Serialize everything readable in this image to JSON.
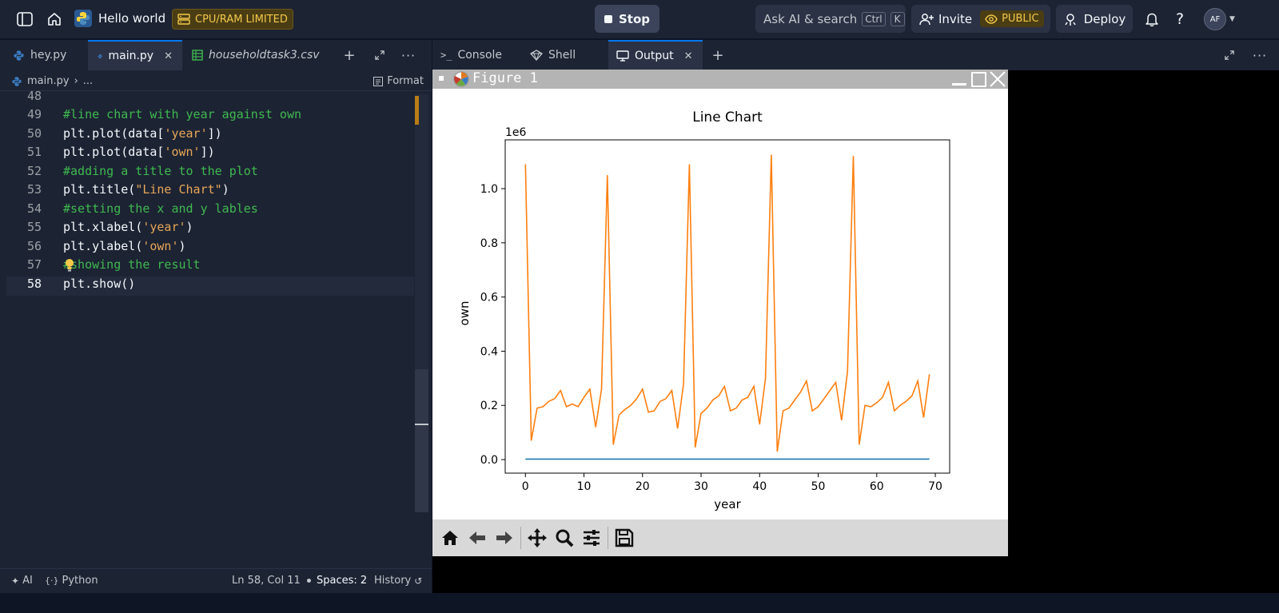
{
  "topbar": {
    "app_title": "Hello world",
    "limit_badge": "CPU/RAM LIMITED",
    "stop_label": "Stop",
    "search_label": "Ask AI & search",
    "shortcut_ctrl": "Ctrl",
    "shortcut_k": "K",
    "invite_label": "Invite",
    "visibility_label": "PUBLIC",
    "deploy_label": "Deploy",
    "avatar_initials": "AF"
  },
  "editor": {
    "tabs": [
      {
        "label": "hey.py"
      },
      {
        "label": "main.py"
      },
      {
        "label": "householdtask3.csv"
      }
    ],
    "breadcrumb_file": "main.py",
    "breadcrumb_more": "...",
    "format_label": "Format",
    "lines": [
      {
        "n": "48",
        "parts": []
      },
      {
        "n": "49",
        "parts": [
          {
            "t": "#line chart with year against own",
            "c": "cm"
          }
        ]
      },
      {
        "n": "50",
        "parts": [
          {
            "t": "plt.",
            "c": "nm"
          },
          {
            "t": "plot",
            "c": "fn"
          },
          {
            "t": "(data[",
            "c": "nm"
          },
          {
            "t": "'year'",
            "c": "st"
          },
          {
            "t": "])",
            "c": "nm"
          }
        ]
      },
      {
        "n": "51",
        "parts": [
          {
            "t": "plt.",
            "c": "nm"
          },
          {
            "t": "plot",
            "c": "fn"
          },
          {
            "t": "(data[",
            "c": "nm"
          },
          {
            "t": "'own'",
            "c": "st"
          },
          {
            "t": "])",
            "c": "nm"
          }
        ]
      },
      {
        "n": "52",
        "parts": [
          {
            "t": "#adding a title to the plot",
            "c": "cm"
          }
        ]
      },
      {
        "n": "53",
        "parts": [
          {
            "t": "plt.",
            "c": "nm"
          },
          {
            "t": "title",
            "c": "fn"
          },
          {
            "t": "(",
            "c": "nm"
          },
          {
            "t": "\"Line Chart\"",
            "c": "st"
          },
          {
            "t": ")",
            "c": "nm"
          }
        ]
      },
      {
        "n": "54",
        "parts": [
          {
            "t": "#setting the x and y lables",
            "c": "cm"
          }
        ]
      },
      {
        "n": "55",
        "parts": [
          {
            "t": "plt.",
            "c": "nm"
          },
          {
            "t": "xlabel",
            "c": "fn"
          },
          {
            "t": "(",
            "c": "nm"
          },
          {
            "t": "'year'",
            "c": "st"
          },
          {
            "t": ")",
            "c": "nm"
          }
        ]
      },
      {
        "n": "56",
        "parts": [
          {
            "t": "plt.",
            "c": "nm"
          },
          {
            "t": "ylabel",
            "c": "fn"
          },
          {
            "t": "(",
            "c": "nm"
          },
          {
            "t": "'own'",
            "c": "st"
          },
          {
            "t": ")",
            "c": "nm"
          }
        ]
      },
      {
        "n": "57",
        "parts": [
          {
            "t": "#showing the result",
            "c": "cm"
          }
        ]
      },
      {
        "n": "58",
        "parts": [
          {
            "t": "plt.",
            "c": "nm"
          },
          {
            "t": "show",
            "c": "fn"
          },
          {
            "t": "()",
            "c": "nm"
          }
        ]
      }
    ],
    "status": {
      "ai": "AI",
      "language": "Python",
      "position": "Ln 58, Col 11",
      "spaces": "Spaces: 2",
      "history": "History"
    }
  },
  "output": {
    "tabs": [
      {
        "label": "Console"
      },
      {
        "label": "Shell"
      },
      {
        "label": "Output"
      }
    ],
    "figure_title": "Figure 1"
  },
  "chart_data": {
    "type": "line",
    "title": "Line Chart",
    "xlabel": "year",
    "ylabel": "own",
    "offset_label": "1e6",
    "xlim": [
      -3.45,
      72.45
    ],
    "ylim": [
      -50000,
      1180000
    ],
    "xticks": [
      0,
      10,
      20,
      30,
      40,
      50,
      60,
      70
    ],
    "yticks": [
      0,
      200000,
      400000,
      600000,
      800000,
      1000000
    ],
    "ytick_labels": [
      "0.0",
      "0.2",
      "0.4",
      "0.6",
      "0.8",
      "1.0"
    ],
    "grid": false,
    "series": [
      {
        "color": "#1f77b4",
        "x": [
          0,
          69
        ],
        "y": [
          2000,
          2000
        ]
      },
      {
        "color": "#ff7f0e",
        "x": [
          0,
          1,
          2,
          3,
          4,
          5,
          6,
          7,
          8,
          9,
          10,
          11,
          12,
          13,
          14,
          15,
          16,
          17,
          18,
          19,
          20,
          21,
          22,
          23,
          24,
          25,
          26,
          27,
          28,
          29,
          30,
          31,
          32,
          33,
          34,
          35,
          36,
          37,
          38,
          39,
          40,
          41,
          42,
          43,
          44,
          45,
          46,
          47,
          48,
          49,
          50,
          51,
          52,
          53,
          54,
          55,
          56,
          57,
          58,
          59,
          60,
          61,
          62,
          63,
          64,
          65,
          66,
          67,
          68,
          69
        ],
        "y": [
          1090000,
          70000,
          190000,
          195000,
          215000,
          225000,
          255000,
          195000,
          205000,
          195000,
          230000,
          260000,
          120000,
          260000,
          1050000,
          55000,
          165000,
          185000,
          200000,
          225000,
          260000,
          175000,
          180000,
          215000,
          225000,
          255000,
          115000,
          280000,
          1090000,
          45000,
          170000,
          190000,
          220000,
          235000,
          270000,
          180000,
          190000,
          220000,
          230000,
          270000,
          130000,
          300000,
          1125000,
          30000,
          180000,
          190000,
          220000,
          250000,
          290000,
          180000,
          195000,
          225000,
          255000,
          285000,
          145000,
          325000,
          1120000,
          55000,
          200000,
          195000,
          210000,
          230000,
          285000,
          180000,
          200000,
          215000,
          235000,
          290000,
          155000,
          315000
        ]
      }
    ]
  }
}
